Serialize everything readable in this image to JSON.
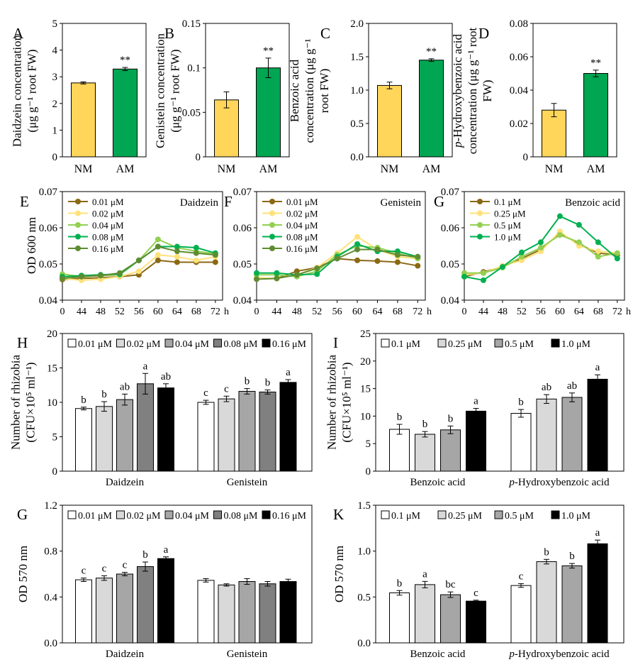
{
  "colors": {
    "nm": "#FFD55A",
    "am": "#00A651",
    "lc": [
      "#8B6914",
      "#FFE17A",
      "#92D050",
      "#00B050",
      "#5E8C31"
    ],
    "gray": [
      "#FFFFFF",
      "#D9D9D9",
      "#A6A6A6",
      "#808080",
      "#000000"
    ]
  },
  "chart_data": [
    {
      "id": "A",
      "type": "bar",
      "panel_label": "A",
      "ylabel": [
        "Daidzein concentration",
        "(μg g⁻¹ root FW)"
      ],
      "categories": [
        "NM",
        "AM"
      ],
      "values": [
        2.77,
        3.29
      ],
      "errors": [
        0.04,
        0.06
      ],
      "annotations": [
        "",
        "**"
      ],
      "ylim": [
        0,
        5
      ],
      "yticks": [
        "0",
        "1",
        "2",
        "3",
        "4",
        "5"
      ]
    },
    {
      "id": "B",
      "type": "bar",
      "panel_label": "B",
      "ylabel": [
        "Genistein concentration",
        "(μg g⁻¹ root FW)"
      ],
      "categories": [
        "NM",
        "AM"
      ],
      "values": [
        0.064,
        0.1
      ],
      "errors": [
        0.009,
        0.011
      ],
      "annotations": [
        "",
        "**"
      ],
      "ylim": [
        0,
        0.15
      ],
      "yticks": [
        "0",
        "0.05",
        "0.1",
        "0.15"
      ]
    },
    {
      "id": "C",
      "type": "bar",
      "panel_label": "C",
      "ylabel": [
        "Benzoic acid",
        "concentration (μg g⁻¹",
        "root FW)"
      ],
      "categories": [
        "NM",
        "AM"
      ],
      "values": [
        1.07,
        1.45
      ],
      "errors": [
        0.05,
        0.02
      ],
      "annotations": [
        "",
        "**"
      ],
      "ylim": [
        0,
        2
      ],
      "yticks": [
        "0.0",
        "0.5",
        "1.0",
        "1.5",
        "2.0"
      ]
    },
    {
      "id": "D",
      "type": "bar",
      "panel_label": "D",
      "ylabel": [
        "p-Hydroxybenzoic acid",
        "concentration (μg g⁻¹ root",
        "FW)"
      ],
      "categories": [
        "NM",
        "AM"
      ],
      "values": [
        0.028,
        0.05
      ],
      "errors": [
        0.004,
        0.002
      ],
      "annotations": [
        "",
        "**"
      ],
      "ylim": [
        0,
        0.08
      ],
      "yticks": [
        "0",
        "0.02",
        "0.04",
        "0.06",
        "0.08"
      ]
    },
    {
      "id": "E",
      "type": "line",
      "panel_label": "E",
      "title": "Daidzein",
      "ylabel": [
        "OD 600 nm"
      ],
      "x": [
        "0",
        "44",
        "48",
        "52",
        "56",
        "60",
        "64",
        "68",
        "72"
      ],
      "x_unit": "h",
      "ylim": [
        0.04,
        0.07
      ],
      "yticks": [
        "0.04",
        "0.05",
        "0.06",
        "0.07"
      ],
      "series": [
        {
          "name": "0.01 μM",
          "values": [
            0.0457,
            0.046,
            0.0462,
            0.0465,
            0.047,
            0.051,
            0.0505,
            0.0505,
            0.0505
          ]
        },
        {
          "name": "0.02 μM",
          "values": [
            0.046,
            0.0455,
            0.0458,
            0.0465,
            0.048,
            0.0525,
            0.052,
            0.051,
            0.052
          ]
        },
        {
          "name": "0.04 μM",
          "values": [
            0.0472,
            0.0465,
            0.0468,
            0.047,
            0.051,
            0.0568,
            0.0545,
            0.0535,
            0.0528
          ]
        },
        {
          "name": "0.08 μM",
          "values": [
            0.0465,
            0.0468,
            0.047,
            0.0472,
            0.051,
            0.0548,
            0.0548,
            0.0545,
            0.053
          ]
        },
        {
          "name": "0.16 μM",
          "values": [
            0.046,
            0.0465,
            0.0468,
            0.0475,
            0.051,
            0.0548,
            0.0535,
            0.053,
            0.0525
          ]
        }
      ]
    },
    {
      "id": "F",
      "type": "line",
      "panel_label": "F",
      "title": "Genistein",
      "ylabel": [],
      "x": [
        "0",
        "44",
        "48",
        "52",
        "56",
        "60",
        "64",
        "68",
        "72"
      ],
      "x_unit": "h",
      "ylim": [
        0.04,
        0.07
      ],
      "yticks": [
        "0.04",
        "0.05",
        "0.06",
        "0.07"
      ],
      "series": [
        {
          "name": "0.01 μM",
          "values": [
            0.046,
            0.046,
            0.048,
            0.049,
            0.0515,
            0.051,
            0.0508,
            0.0505,
            0.0495
          ]
        },
        {
          "name": "0.02 μM",
          "values": [
            0.0462,
            0.046,
            0.047,
            0.049,
            0.053,
            0.0575,
            0.054,
            0.052,
            0.0515
          ]
        },
        {
          "name": "0.04 μM",
          "values": [
            0.047,
            0.047,
            0.0465,
            0.048,
            0.0525,
            0.055,
            0.0545,
            0.053,
            0.0515
          ]
        },
        {
          "name": "0.08 μM",
          "values": [
            0.0475,
            0.0475,
            0.047,
            0.0472,
            0.052,
            0.0555,
            0.0535,
            0.0535,
            0.052
          ]
        },
        {
          "name": "0.16 μM",
          "values": [
            0.0458,
            0.046,
            0.047,
            0.0488,
            0.0515,
            0.054,
            0.054,
            0.0525,
            0.052
          ]
        }
      ]
    },
    {
      "id": "G1",
      "type": "line",
      "panel_label": "G",
      "title": "Benzoic acid",
      "ylabel": [],
      "x": [
        "0",
        "44",
        "48",
        "52",
        "56",
        "60",
        "64",
        "68",
        "72"
      ],
      "x_unit": "h",
      "ylim": [
        0.04,
        0.07
      ],
      "yticks": [
        "0.04",
        "0.05",
        "0.06",
        "0.07"
      ],
      "series": [
        {
          "name": "0.1 μM",
          "values": [
            0.0465,
            0.0478,
            0.0492,
            0.0515,
            0.054,
            0.0585,
            0.0555,
            0.053,
            0.0525
          ]
        },
        {
          "name": "0.25 μM",
          "values": [
            0.047,
            0.0475,
            0.0495,
            0.051,
            0.0535,
            0.059,
            0.055,
            0.0535,
            0.053
          ]
        },
        {
          "name": "0.5 μM",
          "values": [
            0.0475,
            0.0475,
            0.049,
            0.052,
            0.0545,
            0.058,
            0.056,
            0.052,
            0.053
          ]
        },
        {
          "name": "1.0 μM",
          "values": [
            0.0465,
            0.0455,
            0.0492,
            0.0532,
            0.056,
            0.0632,
            0.0608,
            0.056,
            0.0515
          ]
        }
      ]
    },
    {
      "id": "H",
      "type": "bar",
      "panel_label": "H",
      "ylabel": [
        "Number of rhizobia",
        "(CFU×10⁵ ml⁻¹)"
      ],
      "groups": [
        "Daidzein",
        "Genistein"
      ],
      "legend": [
        "0.01 μM",
        "0.02 μM",
        "0.04 μM",
        "0.08 μM",
        "0.16 μM"
      ],
      "ylim": [
        0,
        20
      ],
      "yticks": [
        "0",
        "5",
        "10",
        "15",
        "20"
      ],
      "series_values": [
        [
          9.1,
          9.4,
          10.4,
          12.7,
          12.1
        ],
        [
          10.0,
          10.5,
          11.6,
          11.5,
          12.9
        ]
      ],
      "series_errors": [
        [
          0.2,
          0.7,
          0.8,
          1.5,
          0.6
        ],
        [
          0.3,
          0.4,
          0.4,
          0.3,
          0.4
        ]
      ],
      "letters": [
        [
          "b",
          "b",
          "ab",
          "a",
          "ab"
        ],
        [
          "c",
          "c",
          "b",
          "b",
          "a"
        ]
      ]
    },
    {
      "id": "I",
      "type": "bar",
      "panel_label": "I",
      "ylabel": [
        "Number of rhizobia",
        "(CFU×10⁵ ml⁻¹)"
      ],
      "groups": [
        "Benzoic acid",
        "p-Hydroxybenzoic acid"
      ],
      "legend": [
        "0.1 μM",
        "0.25 μM",
        "0.5 μM",
        "1.0 μM"
      ],
      "ylim": [
        0,
        25
      ],
      "yticks": [
        "0",
        "5",
        "10",
        "15",
        "20",
        "25"
      ],
      "series_values": [
        [
          7.6,
          6.7,
          7.5,
          10.9
        ],
        [
          10.5,
          13.1,
          13.4,
          16.7
        ]
      ],
      "series_errors": [
        [
          0.9,
          0.5,
          0.7,
          0.5
        ],
        [
          0.7,
          0.8,
          0.8,
          0.8
        ]
      ],
      "letters": [
        [
          "b",
          "b",
          "b",
          "a"
        ],
        [
          "b",
          "ab",
          "ab",
          "a"
        ]
      ]
    },
    {
      "id": "G2",
      "type": "bar",
      "panel_label": "G",
      "ylabel": [
        "OD 570 nm"
      ],
      "groups": [
        "Daidzein",
        "Genistein"
      ],
      "legend": [
        "0.01 μM",
        "0.02 μM",
        "0.04 μM",
        "0.08 μM",
        "0.16 μM"
      ],
      "ylim": [
        0,
        1.2
      ],
      "yticks": [
        "0.0",
        "0.4",
        "0.8",
        "1.2"
      ],
      "series_values": [
        [
          0.55,
          0.565,
          0.6,
          0.665,
          0.735
        ],
        [
          0.545,
          0.505,
          0.535,
          0.515,
          0.535
        ]
      ],
      "series_errors": [
        [
          0.015,
          0.02,
          0.015,
          0.04,
          0.015
        ],
        [
          0.015,
          0.01,
          0.025,
          0.02,
          0.02
        ]
      ],
      "letters": [
        [
          "c",
          "c",
          "c",
          "b",
          "a"
        ],
        [
          "",
          "",
          "",
          "",
          ""
        ]
      ]
    },
    {
      "id": "K",
      "type": "bar",
      "panel_label": "K",
      "ylabel": [
        "OD 570 nm"
      ],
      "groups": [
        "Benzoic acid",
        "p-Hydroxybenzoic acid"
      ],
      "legend": [
        "0.1 μM",
        "0.25 μM",
        "0.5 μM",
        "1.0 μM"
      ],
      "ylim": [
        0,
        1.5
      ],
      "yticks": [
        "0.0",
        "0.5",
        "1.0",
        "1.5"
      ],
      "series_values": [
        [
          0.545,
          0.635,
          0.525,
          0.455
        ],
        [
          0.625,
          0.885,
          0.84,
          1.08
        ]
      ],
      "series_errors": [
        [
          0.025,
          0.035,
          0.03,
          0.01
        ],
        [
          0.02,
          0.025,
          0.025,
          0.04
        ]
      ],
      "letters": [
        [
          "b",
          "a",
          "bc",
          "c"
        ],
        [
          "c",
          "b",
          "b",
          "a"
        ]
      ]
    }
  ]
}
